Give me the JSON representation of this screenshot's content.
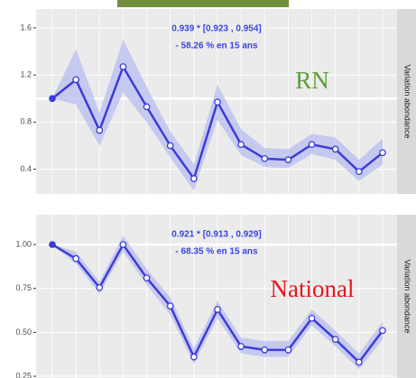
{
  "chart_data": [
    {
      "type": "line",
      "annotations": [
        "0.939 *  [0.923 , 0.954]",
        "- 58.26 % en 15 ans"
      ],
      "annotation_color": "#3a45e0",
      "label": "RN",
      "label_color": "#5e9e3a",
      "strip": "Variation abondance",
      "ylim": [
        0.19,
        1.76
      ],
      "yticks": [
        0.4,
        0.8,
        1.2,
        1.6
      ],
      "reference_line": 1,
      "series": [
        {
          "color": "#3c3cd8",
          "values": [
            1.0,
            1.16,
            0.73,
            1.27,
            0.93,
            0.6,
            0.32,
            0.97,
            0.61,
            0.49,
            0.48,
            0.61,
            0.57,
            0.38,
            0.54
          ],
          "lower": [
            1.0,
            0.95,
            0.6,
            1.05,
            0.8,
            0.5,
            0.22,
            0.82,
            0.52,
            0.42,
            0.41,
            0.53,
            0.48,
            0.3,
            0.44
          ],
          "upper": [
            1.0,
            1.42,
            0.88,
            1.5,
            1.1,
            0.72,
            0.44,
            1.12,
            0.74,
            0.58,
            0.57,
            0.7,
            0.67,
            0.48,
            0.66
          ],
          "band_color": "#b9bdf0"
        }
      ]
    },
    {
      "type": "line",
      "annotations": [
        "0.921 *  [0.913 , 0.929]",
        "- 68.35 % en 15 ans"
      ],
      "annotation_color": "#3a45e0",
      "label": "National",
      "label_color": "#e8141c",
      "strip": "Variation abondance",
      "ylim": [
        0.24,
        1.17
      ],
      "yticks": [
        0.25,
        {
          "value": 0.5,
          "label": "0.50"
        },
        0.75,
        {
          "value": 1,
          "label": "1.00"
        }
      ],
      "reference_line": 1,
      "series": [
        {
          "color": "#3c3cd8",
          "values": [
            1.0,
            0.92,
            0.755,
            1.0,
            0.81,
            0.65,
            0.36,
            0.63,
            0.42,
            0.4,
            0.4,
            0.58,
            0.46,
            0.33,
            0.51
          ],
          "lower": [
            1.0,
            0.89,
            0.72,
            0.96,
            0.77,
            0.6,
            0.32,
            0.58,
            0.38,
            0.36,
            0.36,
            0.54,
            0.42,
            0.29,
            0.46
          ],
          "upper": [
            1.0,
            0.96,
            0.79,
            1.05,
            0.86,
            0.7,
            0.41,
            0.68,
            0.47,
            0.45,
            0.45,
            0.63,
            0.51,
            0.38,
            0.56
          ],
          "band_color": "#b9bdf0"
        }
      ]
    }
  ]
}
